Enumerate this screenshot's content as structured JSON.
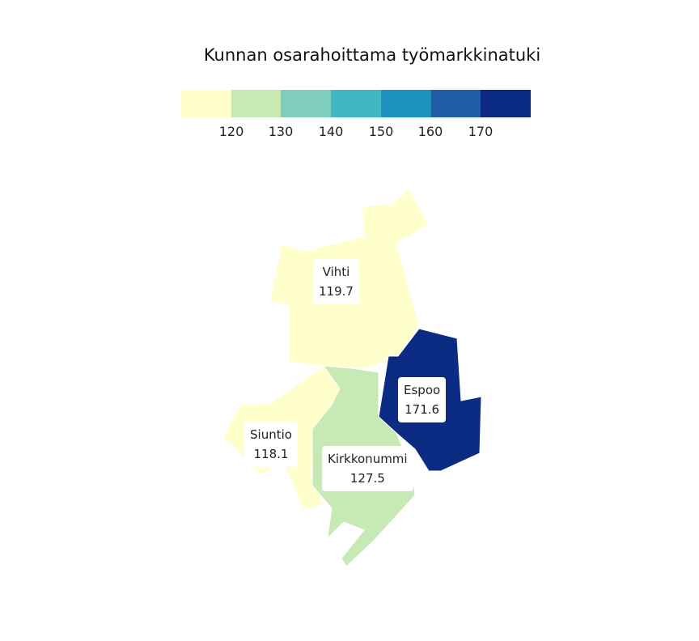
{
  "title": "Kunnan osarahoittama työmarkkinatuki",
  "legend": {
    "colors": [
      "#ffffcc",
      "#c7e9b4",
      "#7fcdbb",
      "#41b6c4",
      "#1d91c0",
      "#225ea8",
      "#0c2c84"
    ],
    "ticks": [
      "120",
      "130",
      "140",
      "150",
      "160",
      "170"
    ]
  },
  "regions": [
    {
      "name": "Vihti",
      "value": "119.7",
      "color": "#ffffcc"
    },
    {
      "name": "Siuntio",
      "value": "118.1",
      "color": "#ffffcc"
    },
    {
      "name": "Kirkkonummi",
      "value": "127.5",
      "color": "#c7e9b4"
    },
    {
      "name": "Espoo",
      "value": "171.6",
      "color": "#0c2c84"
    }
  ]
}
